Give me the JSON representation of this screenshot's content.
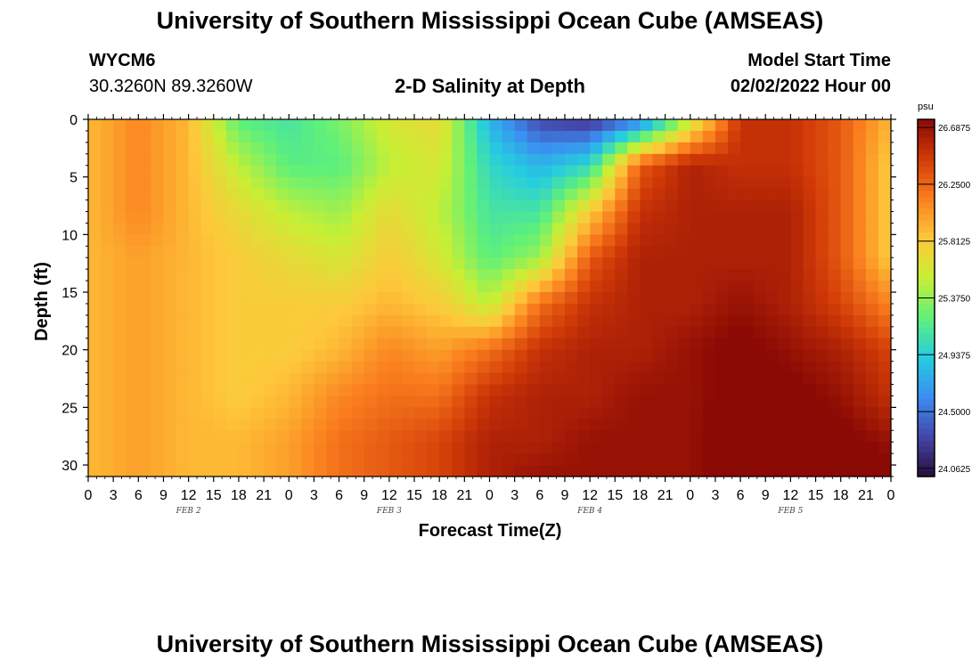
{
  "header": {
    "title": "University of Southern Mississippi Ocean Cube (AMSEAS)",
    "station": "WYCM6",
    "coordinates": "30.3260N  89.3260W",
    "subtitle": "2-D Salinity at Depth",
    "model_start_label": "Model Start Time",
    "model_start_value": "02/02/2022 Hour 00"
  },
  "footer": {
    "title": "University of Southern Mississippi Ocean Cube (AMSEAS)"
  },
  "chart_data": {
    "type": "heatmap",
    "title": "2-D Salinity at Depth",
    "xlabel": "Forecast Time(Z)",
    "ylabel": "Depth (ft)",
    "units": "psu",
    "x_hours": [
      0,
      6,
      12,
      18,
      24,
      30,
      36,
      42,
      48,
      54,
      60,
      66,
      72,
      78,
      84,
      90,
      96
    ],
    "x_tick_labels": [
      "0",
      "3",
      "6",
      "9",
      "12",
      "15",
      "18",
      "21",
      "0",
      "3",
      "6",
      "9",
      "12",
      "15",
      "18",
      "21",
      "0",
      "3",
      "6",
      "9",
      "12",
      "15",
      "18",
      "21",
      "0",
      "3",
      "6",
      "9",
      "12",
      "15",
      "18",
      "21",
      "0"
    ],
    "date_labels": [
      "FEB 2",
      "FEB 3",
      "FEB 4",
      "FEB 5"
    ],
    "y_ticks": [
      0,
      5,
      10,
      15,
      20,
      25,
      30
    ],
    "ylim": [
      0,
      31
    ],
    "depths": [
      0,
      4,
      8,
      12,
      16,
      20,
      24,
      28,
      31
    ],
    "salinity_psu": [
      [
        25.9,
        26.1,
        25.9,
        25.2,
        25.1,
        25.3,
        25.6,
        25.7,
        24.8,
        24.3,
        24.2,
        24.5,
        25.5,
        26.5,
        26.5,
        26.3,
        25.9
      ],
      [
        25.9,
        26.1,
        25.9,
        25.5,
        25.2,
        25.2,
        25.5,
        25.6,
        25.0,
        24.8,
        25.0,
        26.3,
        26.6,
        26.5,
        26.5,
        26.3,
        25.8
      ],
      [
        25.9,
        26.1,
        25.9,
        25.7,
        25.5,
        25.4,
        25.7,
        25.5,
        25.1,
        25.1,
        25.8,
        26.5,
        26.6,
        26.6,
        26.6,
        26.3,
        25.8
      ],
      [
        25.9,
        26.0,
        25.9,
        25.8,
        25.7,
        25.6,
        25.8,
        25.6,
        25.2,
        25.4,
        26.3,
        26.6,
        26.6,
        26.6,
        26.6,
        26.3,
        25.8
      ],
      [
        25.9,
        26.0,
        25.9,
        25.8,
        25.8,
        25.8,
        25.9,
        25.8,
        25.5,
        26.2,
        26.5,
        26.6,
        26.6,
        26.7,
        26.6,
        26.4,
        26.1
      ],
      [
        25.9,
        26.0,
        25.9,
        25.8,
        25.8,
        25.9,
        26.1,
        26.0,
        26.2,
        26.5,
        26.6,
        26.6,
        26.7,
        26.8,
        26.7,
        26.6,
        26.4
      ],
      [
        25.9,
        26.0,
        25.9,
        25.8,
        25.9,
        26.1,
        26.2,
        26.2,
        26.5,
        26.6,
        26.6,
        26.7,
        26.7,
        26.8,
        26.8,
        26.7,
        26.5
      ],
      [
        25.9,
        26.0,
        25.9,
        25.9,
        26.0,
        26.2,
        26.3,
        26.4,
        26.6,
        26.6,
        26.7,
        26.7,
        26.7,
        26.9,
        26.8,
        26.8,
        26.7
      ],
      [
        25.9,
        26.0,
        25.9,
        25.9,
        26.0,
        26.2,
        26.3,
        26.4,
        26.6,
        26.7,
        26.7,
        26.7,
        26.7,
        26.9,
        26.8,
        26.8,
        26.8
      ]
    ],
    "colorbar_labels": [
      "26.6875",
      "26.2500",
      "25.8125",
      "25.3750",
      "24.9375",
      "24.5000",
      "24.0625"
    ],
    "colorbar_levels": [
      26.6875,
      26.25,
      25.8125,
      25.375,
      24.9375,
      24.5,
      24.0625
    ],
    "colorbar_min": 24.0,
    "colorbar_max": 26.75,
    "colormap": [
      "#2a0e3a",
      "#4446a8",
      "#3b8ef0",
      "#25cde0",
      "#5ff07a",
      "#c8ef34",
      "#fec83a",
      "#fa7e1e",
      "#d13a07",
      "#8b0a05"
    ]
  }
}
